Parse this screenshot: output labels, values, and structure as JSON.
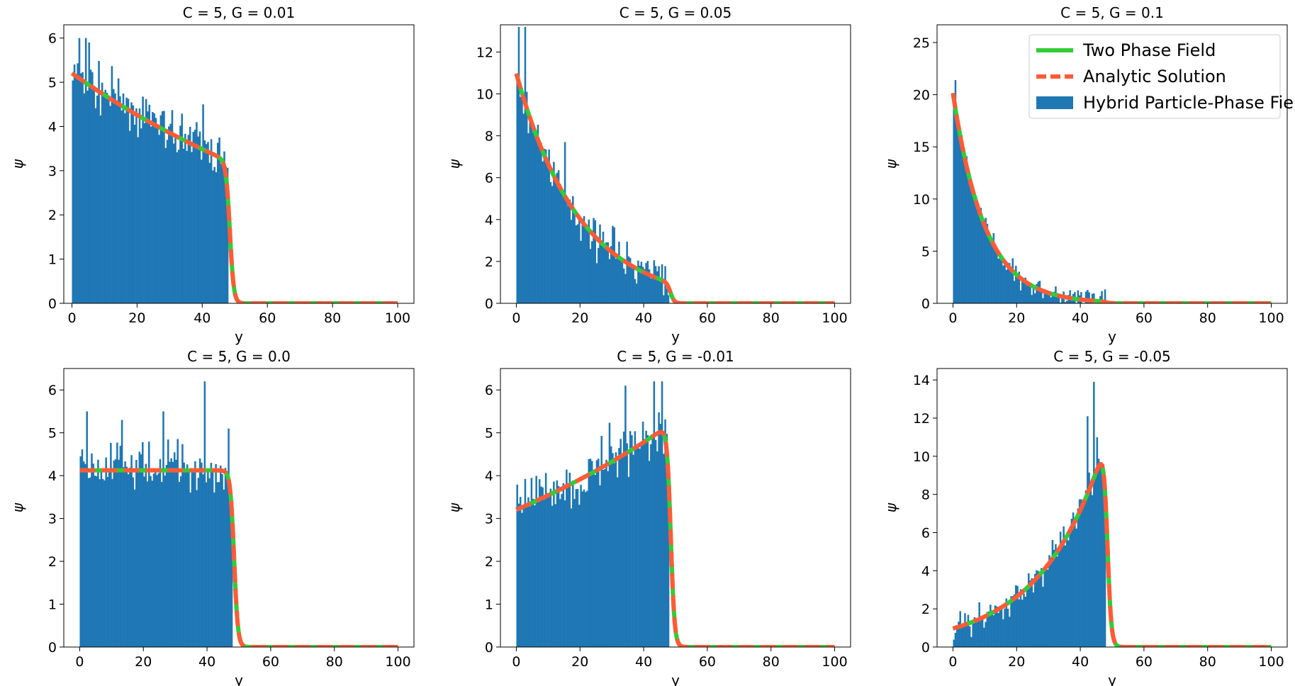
{
  "chart_data": [
    {
      "type": "bar",
      "title": "C = 5, G = 0.01",
      "xlabel": "y",
      "ylabel": "ψ",
      "xlim": [
        -2.5,
        105
      ],
      "ylim": [
        0,
        6.3
      ],
      "xticks": [
        0,
        20,
        40,
        60,
        80,
        100
      ],
      "yticks": [
        0,
        1,
        2,
        3,
        4,
        5,
        6
      ],
      "C": 5,
      "G": 0.01,
      "interface_y": 48.5,
      "histogram": {
        "bin_width": 0.5,
        "start": 0,
        "end": 47.5,
        "noise_amplitude": 0.8,
        "peaks": [
          [
            2,
            6.0
          ],
          [
            4,
            6.0
          ],
          [
            5,
            5.9
          ],
          [
            40,
            4.5
          ]
        ]
      },
      "series": [
        {
          "name": "Two Phase Field",
          "style": "solid",
          "color": "#33cc33"
        },
        {
          "name": "Analytic Solution",
          "style": "dashed",
          "color": "#ff5a36"
        },
        {
          "name": "Hybrid Particle-Phase Field",
          "style": "bar",
          "color": "#1f77b4"
        }
      ],
      "legend": "none"
    },
    {
      "type": "bar",
      "title": "C = 5, G = 0.05",
      "xlabel": "y",
      "ylabel": "ψ",
      "xlim": [
        -5,
        105
      ],
      "ylim": [
        0,
        13.3
      ],
      "xticks": [
        0,
        20,
        40,
        60,
        80,
        100
      ],
      "yticks": [
        0,
        2,
        4,
        6,
        8,
        10,
        12
      ],
      "C": 5,
      "G": 0.05,
      "interface_y": 48.5,
      "histogram": {
        "bin_width": 0.5,
        "start": 0,
        "end": 47.5,
        "noise_amplitude": 1.4,
        "peaks": [
          [
            0.5,
            13.2
          ],
          [
            2.5,
            13.2
          ],
          [
            15,
            7.7
          ],
          [
            30,
            3.7
          ]
        ]
      },
      "series": [
        {
          "name": "Two Phase Field",
          "style": "solid",
          "color": "#33cc33"
        },
        {
          "name": "Analytic Solution",
          "style": "dashed",
          "color": "#ff5a36"
        },
        {
          "name": "Hybrid Particle-Phase Field",
          "style": "bar",
          "color": "#1f77b4"
        }
      ],
      "legend": "none"
    },
    {
      "type": "bar",
      "title": "C = 5, G = 0.1",
      "xlabel": "y",
      "ylabel": "ψ",
      "xlim": [
        -5,
        105
      ],
      "ylim": [
        0,
        26.7
      ],
      "xticks": [
        0,
        20,
        40,
        60,
        80,
        100
      ],
      "yticks": [
        0,
        5,
        10,
        15,
        20,
        25
      ],
      "C": 5,
      "G": 0.1,
      "interface_y": 48.5,
      "histogram": {
        "bin_width": 0.5,
        "start": 0,
        "end": 47.5,
        "noise_amplitude": 1.5,
        "peaks": [
          [
            0.5,
            21.4
          ],
          [
            10,
            8.2
          ],
          [
            25,
            1.7
          ]
        ]
      },
      "series": [
        {
          "name": "Two Phase Field",
          "style": "solid",
          "color": "#33cc33"
        },
        {
          "name": "Analytic Solution",
          "style": "dashed",
          "color": "#ff5a36"
        },
        {
          "name": "Hybrid Particle-Phase Field",
          "style": "bar",
          "color": "#1f77b4"
        }
      ],
      "legend": "top-right"
    },
    {
      "type": "bar",
      "title": "C = 5, G = 0.0",
      "xlabel": "y",
      "ylabel": "ψ",
      "xlim": [
        -5,
        105
      ],
      "ylim": [
        0,
        6.5
      ],
      "xticks": [
        0,
        20,
        40,
        60,
        80,
        100
      ],
      "yticks": [
        0,
        1,
        2,
        3,
        4,
        5,
        6
      ],
      "C": 5,
      "G": 0.0,
      "interface_y": 48.5,
      "histogram": {
        "bin_width": 0.5,
        "start": 0,
        "end": 47.5,
        "noise_amplitude": 0.9,
        "peaks": [
          [
            2,
            5.5
          ],
          [
            13,
            5.3
          ],
          [
            26,
            5.5
          ],
          [
            39,
            6.2
          ],
          [
            46.5,
            5.1
          ]
        ]
      },
      "series": [
        {
          "name": "Two Phase Field",
          "style": "solid",
          "color": "#33cc33"
        },
        {
          "name": "Analytic Solution",
          "style": "dashed",
          "color": "#ff5a36"
        },
        {
          "name": "Hybrid Particle-Phase Field",
          "style": "bar",
          "color": "#1f77b4"
        }
      ],
      "legend": "none"
    },
    {
      "type": "bar",
      "title": "C = 5, G = -0.01",
      "xlabel": "y",
      "ylabel": "ψ",
      "xlim": [
        -5,
        105
      ],
      "ylim": [
        0,
        6.5
      ],
      "xticks": [
        0,
        20,
        40,
        60,
        80,
        100
      ],
      "yticks": [
        0,
        1,
        2,
        3,
        4,
        5,
        6
      ],
      "C": 5,
      "G": -0.01,
      "interface_y": 48.5,
      "histogram": {
        "bin_width": 0.5,
        "start": 0,
        "end": 47.5,
        "noise_amplitude": 0.9,
        "peaks": [
          [
            34,
            6.1
          ],
          [
            43,
            6.2
          ],
          [
            45.5,
            6.2
          ]
        ]
      },
      "series": [
        {
          "name": "Two Phase Field",
          "style": "solid",
          "color": "#33cc33"
        },
        {
          "name": "Analytic Solution",
          "style": "dashed",
          "color": "#ff5a36"
        },
        {
          "name": "Hybrid Particle-Phase Field",
          "style": "bar",
          "color": "#1f77b4"
        }
      ],
      "legend": "none"
    },
    {
      "type": "bar",
      "title": "C = 5, G = -0.05",
      "xlabel": "y",
      "ylabel": "ψ",
      "xlim": [
        -5,
        105
      ],
      "ylim": [
        0,
        14.6
      ],
      "xticks": [
        0,
        20,
        40,
        60,
        80,
        100
      ],
      "yticks": [
        0,
        2,
        4,
        6,
        8,
        10,
        12,
        14
      ],
      "C": 5,
      "G": -0.05,
      "interface_y": 48.5,
      "histogram": {
        "bin_width": 0.5,
        "start": 0,
        "end": 47.5,
        "noise_amplitude": 1.2,
        "peaks": [
          [
            42,
            12.1
          ],
          [
            44,
            13.9
          ],
          [
            45,
            11.0
          ]
        ]
      },
      "series": [
        {
          "name": "Two Phase Field",
          "style": "solid",
          "color": "#33cc33"
        },
        {
          "name": "Analytic Solution",
          "style": "dashed",
          "color": "#ff5a36"
        },
        {
          "name": "Hybrid Particle-Phase Field",
          "style": "bar",
          "color": "#1f77b4"
        }
      ],
      "legend": "none"
    }
  ],
  "legend_entries": [
    "Two Phase Field",
    "Analytic Solution",
    "Hybrid Particle-Phase Field"
  ],
  "colors": {
    "bars": "#1f77b4",
    "two_phase": "#33cc33",
    "analytic": "#ff5a36"
  }
}
